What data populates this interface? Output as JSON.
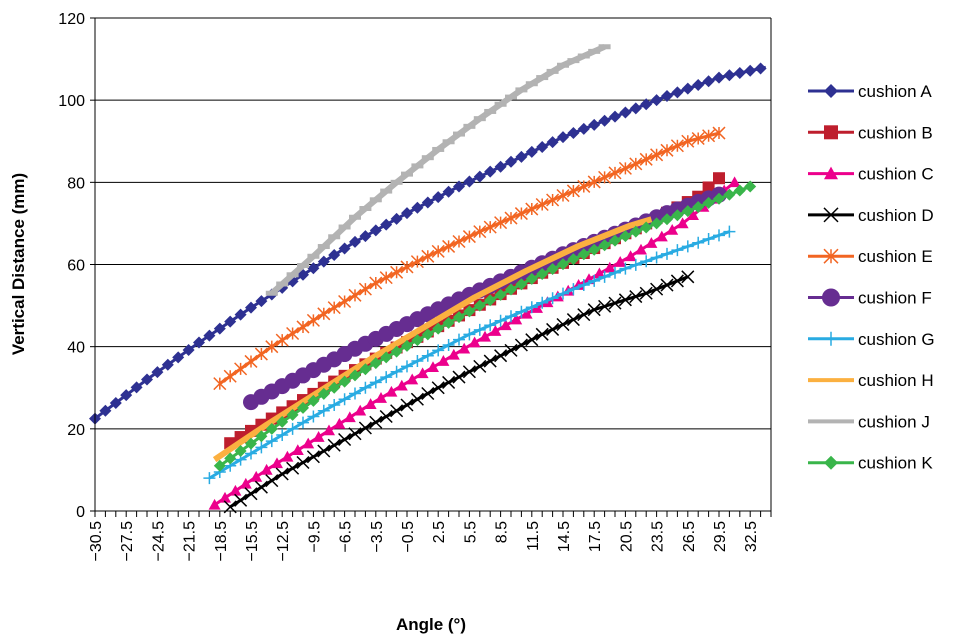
{
  "chart_data": {
    "type": "line",
    "title": "",
    "xlabel": "Angle (°)",
    "ylabel": "Vertical Distance (mm)",
    "xlim": [
      -30.5,
      34.5
    ],
    "ylim": [
      0,
      120
    ],
    "y_ticks": [
      0,
      20,
      40,
      60,
      80,
      100,
      120
    ],
    "x_tick_labels": [
      "−30.5",
      "−27.5",
      "−24.5",
      "−21.5",
      "−18.5",
      "−15.5",
      "−12.5",
      "−9.5",
      "−6.5",
      "−3.5",
      "−0.5",
      "2.5",
      "5.5",
      "8.5",
      "11.5",
      "14.5",
      "17.5",
      "20.5",
      "23.5",
      "26.5",
      "29.5",
      "32.5"
    ],
    "x_tick_values": [
      -30.5,
      -27.5,
      -24.5,
      -21.5,
      -18.5,
      -15.5,
      -12.5,
      -9.5,
      -6.5,
      -3.5,
      -0.5,
      2.5,
      5.5,
      8.5,
      11.5,
      14.5,
      17.5,
      20.5,
      23.5,
      26.5,
      29.5,
      32.5
    ],
    "grid": "horizontal",
    "legend_position": "right",
    "series": [
      {
        "name": "cushion A",
        "color": "#2e3192",
        "marker": "diamond",
        "x": [
          -30.5,
          -25.5,
          -20.5,
          -15.5,
          -10.5,
          -5.5,
          -0.5,
          4.5,
          9.5,
          14.5,
          19.5,
          24.5,
          29.5,
          34
        ],
        "y": [
          22.5,
          32,
          41,
          49.5,
          57.5,
          65.5,
          72.5,
          79,
          85,
          91,
          96,
          101,
          105.5,
          108
        ]
      },
      {
        "name": "cushion B",
        "color": "#be1e2d",
        "marker": "square",
        "x": [
          -17.5,
          -12.5,
          -7.5,
          -2.5,
          2.5,
          7.5,
          12.5,
          17.5,
          22.5,
          27.5,
          29.5
        ],
        "y": [
          16.5,
          24,
          31.5,
          38.5,
          45,
          51.5,
          58,
          64,
          70,
          76.5,
          81
        ]
      },
      {
        "name": "cushion C",
        "color": "#ec008c",
        "marker": "triangle",
        "x": [
          -19,
          -14,
          -9,
          -4,
          1,
          6,
          11,
          16,
          21,
          26,
          31
        ],
        "y": [
          1.5,
          10,
          18,
          26,
          33.5,
          41,
          48,
          55,
          62,
          70,
          80
        ]
      },
      {
        "name": "cushion D",
        "color": "#000000",
        "marker": "x",
        "x": [
          -17.5,
          -12.5,
          -7.5,
          -2.5,
          2.5,
          7.5,
          12.5,
          17.5,
          22.5,
          26.5
        ],
        "y": [
          1,
          9,
          16,
          23,
          30,
          36.5,
          43,
          49,
          53,
          57
        ]
      },
      {
        "name": "cushion E",
        "color": "#f26522",
        "marker": "asterisk",
        "x": [
          -18.5,
          -13.5,
          -8.5,
          -3.5,
          1.5,
          6.5,
          11.5,
          16.5,
          21.5,
          26.5,
          29.5
        ],
        "y": [
          31,
          40,
          48,
          55.5,
          62,
          68,
          73.5,
          79,
          84.5,
          90,
          92
        ]
      },
      {
        "name": "cushion F",
        "color": "#662d91",
        "marker": "circle",
        "x": [
          -15.5,
          -10.5,
          -5.5,
          -0.5,
          4.5,
          9.5,
          14.5,
          19.5,
          24.5,
          29.5
        ],
        "y": [
          26.5,
          33,
          39.5,
          45.5,
          51.5,
          57,
          62.5,
          67.5,
          72.5,
          77
        ]
      },
      {
        "name": "cushion G",
        "color": "#29abe2",
        "marker": "plus",
        "x": [
          -19.5,
          -14.5,
          -9.5,
          -4.5,
          0.5,
          5.5,
          10.5,
          15.5,
          20.5,
          25.5,
          30.5
        ],
        "y": [
          8,
          15.5,
          23,
          30,
          36.5,
          43,
          48.5,
          54,
          59,
          63.5,
          68
        ]
      },
      {
        "name": "cushion H",
        "color": "#fbb040",
        "marker": "none",
        "x": [
          -19,
          -14,
          -9,
          -4,
          1,
          6,
          11,
          16,
          21,
          23
        ],
        "y": [
          12.5,
          21,
          29,
          37,
          44.5,
          52,
          58.5,
          64.5,
          69.5,
          71
        ]
      },
      {
        "name": "cushion J",
        "color": "#b3b3b3",
        "marker": "dash",
        "x": [
          -13.5,
          -9.5,
          -5.5,
          -1.5,
          2.5,
          6.5,
          10.5,
          14.5,
          18.5
        ],
        "y": [
          53,
          62,
          71.5,
          80,
          88,
          95.5,
          102.5,
          108.5,
          113
        ]
      },
      {
        "name": "cushion K",
        "color": "#39b54a",
        "marker": "diamond",
        "x": [
          -18.5,
          -13.5,
          -8.5,
          -3.5,
          1.5,
          6.5,
          11.5,
          16.5,
          21.5,
          26.5,
          32.5
        ],
        "y": [
          11,
          20,
          28.5,
          36,
          43,
          50,
          56.5,
          62.5,
          68,
          73,
          79
        ]
      }
    ]
  }
}
